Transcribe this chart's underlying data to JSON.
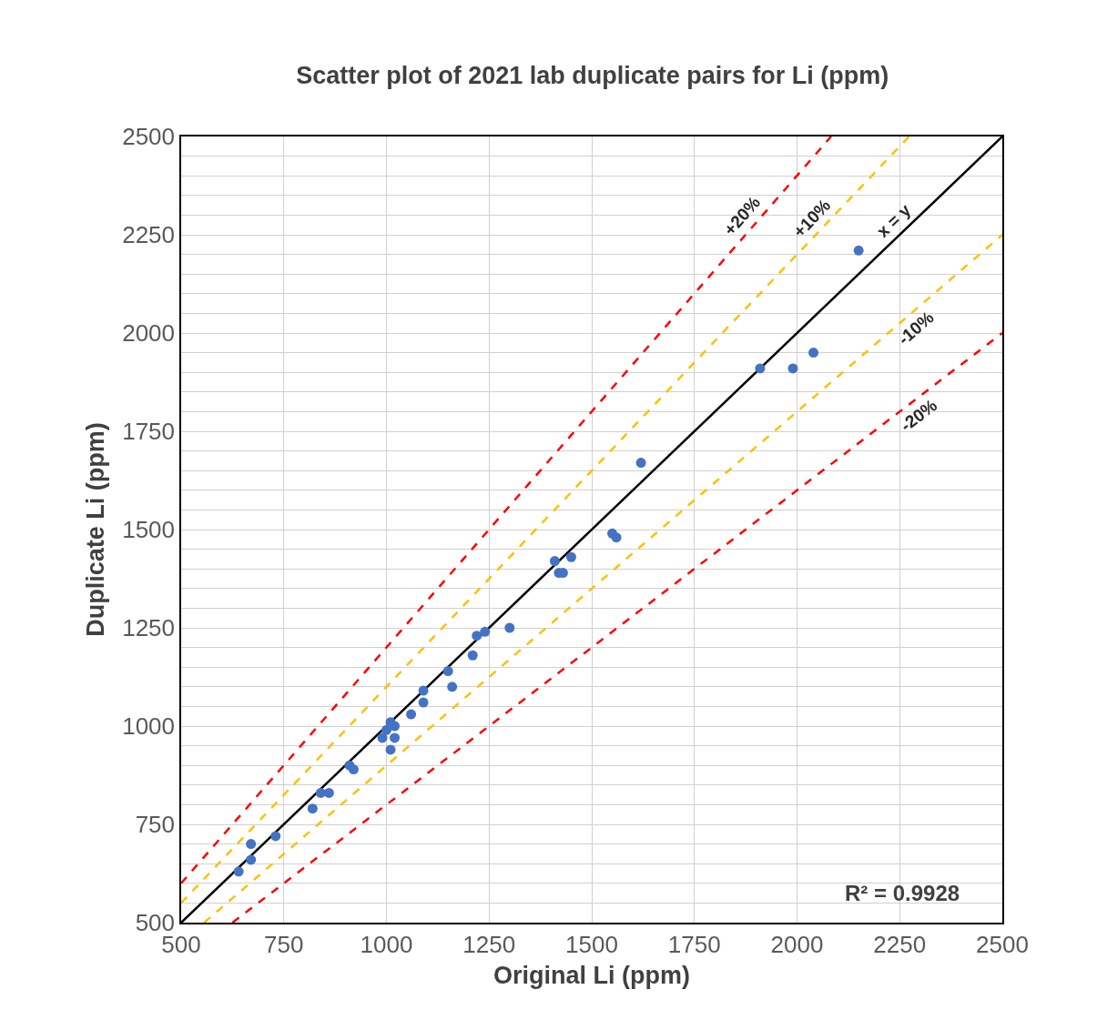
{
  "chart_data": {
    "type": "scatter",
    "title": "Scatter plot of 2021 lab duplicate pairs for Li (ppm)",
    "xlabel": "Original Li (ppm)",
    "ylabel": "Duplicate Li (ppm)",
    "xlim": [
      500,
      2500
    ],
    "ylim": [
      500,
      2500
    ],
    "xticks": [
      500,
      750,
      1000,
      1250,
      1500,
      1750,
      2000,
      2250,
      2500
    ],
    "yticks": [
      500,
      {
        "value": 550,
        "label": null
      },
      {
        "value": 600,
        "label": null
      },
      {
        "value": 650,
        "label": null
      },
      {
        "value": 700,
        "label": null
      },
      750,
      {
        "value": 800,
        "label": null
      },
      {
        "value": 850,
        "label": null
      },
      {
        "value": 900,
        "label": null
      },
      {
        "value": 950,
        "label": null
      },
      1000,
      {
        "value": 1050,
        "label": null
      },
      {
        "value": 1100,
        "label": null
      },
      {
        "value": 1150,
        "label": null
      },
      {
        "value": 1200,
        "label": null
      },
      1250,
      {
        "value": 1300,
        "label": null
      },
      {
        "value": 1350,
        "label": null
      },
      {
        "value": 1400,
        "label": null
      },
      {
        "value": 1450,
        "label": null
      },
      1500,
      {
        "value": 1550,
        "label": null
      },
      {
        "value": 1600,
        "label": null
      },
      {
        "value": 1650,
        "label": null
      },
      {
        "value": 1700,
        "label": null
      },
      1750,
      {
        "value": 1800,
        "label": null
      },
      {
        "value": 1850,
        "label": null
      },
      {
        "value": 1900,
        "label": null
      },
      {
        "value": 1950,
        "label": null
      },
      2000,
      {
        "value": 2050,
        "label": null
      },
      {
        "value": 2100,
        "label": null
      },
      {
        "value": 2150,
        "label": null
      },
      {
        "value": 2200,
        "label": null
      },
      2250,
      {
        "value": 2300,
        "label": null
      },
      {
        "value": 2350,
        "label": null
      },
      {
        "value": 2400,
        "label": null
      },
      {
        "value": 2450,
        "label": null
      },
      2500
    ],
    "grid": true,
    "marker": "circle",
    "legend": false,
    "series": [
      {
        "type": "line",
        "name": "+20%",
        "color": "#ff0000",
        "line_style": "dashed",
        "marker": "none",
        "x": [
          500,
          2083
        ],
        "values": [
          600,
          2500
        ]
      },
      {
        "type": "line",
        "name": "+10%",
        "color": "#ffc000",
        "line_style": "dashed",
        "marker": "none",
        "x": [
          500,
          2273
        ],
        "values": [
          550,
          2500
        ]
      },
      {
        "type": "line",
        "name": "x = y",
        "color": "#000000",
        "line_style": "solid",
        "marker": "none",
        "x": [
          500,
          2500
        ],
        "values": [
          500,
          2500
        ]
      },
      {
        "type": "line",
        "name": "-10%",
        "color": "#ffc000",
        "line_style": "dashed",
        "marker": "none",
        "x": [
          556,
          2500
        ],
        "values": [
          500,
          2250
        ]
      },
      {
        "type": "line",
        "name": "-20%",
        "color": "#ff0000",
        "line_style": "dashed",
        "marker": "none",
        "x": [
          625,
          2500
        ],
        "values": [
          500,
          2000
        ]
      },
      {
        "color": "#4472c4",
        "x": [
          640,
          670,
          670,
          730,
          820,
          840,
          860,
          910,
          920,
          990,
          1000,
          1010,
          1020,
          1020,
          1010,
          1060,
          1090,
          1090,
          1150,
          1160,
          1210,
          1220,
          1240,
          1300,
          1410,
          1450,
          1420,
          1430,
          1550,
          1560,
          1620,
          1910,
          1990,
          2040,
          2150
        ],
        "values": [
          630,
          660,
          700,
          720,
          790,
          830,
          830,
          900,
          890,
          970,
          990,
          1010,
          1000,
          970,
          940,
          1030,
          1060,
          1090,
          1140,
          1100,
          1180,
          1230,
          1240,
          1250,
          1420,
          1430,
          1390,
          1390,
          1490,
          1480,
          1670,
          1910,
          1910,
          1950,
          2210
        ]
      }
    ],
    "annotations": [
      "R² = 0.9928"
    ]
  }
}
